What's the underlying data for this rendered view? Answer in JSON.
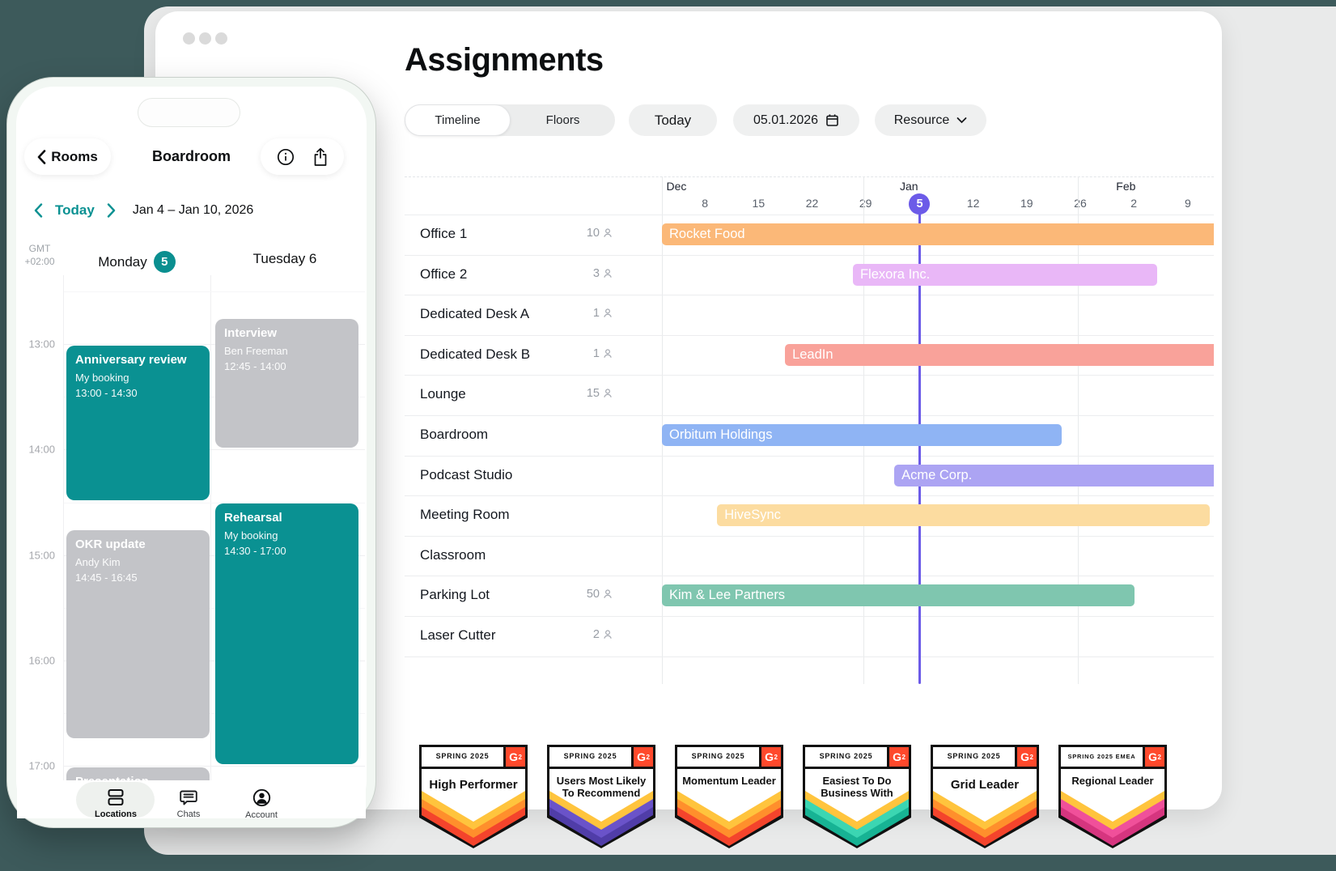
{
  "colors": {
    "backdrop": "#3D5A5B",
    "panel": "#E9EAEA",
    "today_purple": "#6C5BE8",
    "phone_teal": "#0A9192",
    "event_gray": "#C3C4C8",
    "g2_red": "#FF492C"
  },
  "desktop": {
    "title": "Assignments",
    "controls": {
      "timeline_tab": "Timeline",
      "floors_tab": "Floors",
      "today_button": "Today",
      "date_value": "05.01.2026",
      "resource_button": "Resource"
    },
    "timeline": {
      "months": [
        {
          "label": "Dec",
          "pct": 0.8
        },
        {
          "label": "Jan",
          "pct": 43.1
        },
        {
          "label": "Feb",
          "pct": 82.3
        }
      ],
      "ticks": [
        {
          "label": "8",
          "pct": 7.8
        },
        {
          "label": "15",
          "pct": 17.5
        },
        {
          "label": "22",
          "pct": 27.2
        },
        {
          "label": "29",
          "pct": 36.9
        },
        {
          "label": "5",
          "pct": 46.7,
          "today": true
        },
        {
          "label": "12",
          "pct": 56.4
        },
        {
          "label": "19",
          "pct": 66.1
        },
        {
          "label": "26",
          "pct": 75.8
        },
        {
          "label": "2",
          "pct": 85.5
        },
        {
          "label": "9",
          "pct": 95.3
        }
      ],
      "month_gridlines_pct": [
        36.5,
        75.4
      ],
      "today_marker": {
        "label": "5",
        "pct": 46.7
      },
      "rows": [
        {
          "name": "Office 1",
          "capacity": "10",
          "booking": {
            "label": "Rocket Food",
            "start_pct": 0,
            "end_pct": 100,
            "color": "#FBB878",
            "clip_right": true
          }
        },
        {
          "name": "Office 2",
          "capacity": "3",
          "booking": {
            "label": "Flexora Inc.",
            "start_pct": 34.6,
            "end_pct": 89.7,
            "color": "#E9B7F7",
            "clip_right": false
          }
        },
        {
          "name": "Dedicated Desk A",
          "capacity": "1",
          "booking": null
        },
        {
          "name": "Dedicated Desk B",
          "capacity": "1",
          "booking": {
            "label": "LeadIn",
            "start_pct": 22.3,
            "end_pct": 100,
            "color": "#F9A29A",
            "clip_right": true
          }
        },
        {
          "name": "Lounge",
          "capacity": "15",
          "booking": null
        },
        {
          "name": "Boardroom",
          "capacity": null,
          "booking": {
            "label": "Orbitum Holdings",
            "start_pct": 0,
            "end_pct": 72.4,
            "color": "#8FB4F4",
            "clip_right": false
          }
        },
        {
          "name": "Podcast Studio",
          "capacity": null,
          "booking": {
            "label": "Acme Corp.",
            "start_pct": 42.1,
            "end_pct": 100,
            "color": "#ACA4F3",
            "clip_right": true
          }
        },
        {
          "name": "Meeting Room",
          "capacity": null,
          "booking": {
            "label": "HiveSync",
            "start_pct": 10.0,
            "end_pct": 99.3,
            "color": "#FCDCA0",
            "clip_right": false
          }
        },
        {
          "name": "Classroom",
          "capacity": null,
          "booking": null
        },
        {
          "name": "Parking Lot",
          "capacity": "50",
          "booking": {
            "label": "Kim & Lee Partners",
            "start_pct": 0,
            "end_pct": 85.6,
            "color": "#7FC6AF",
            "clip_right": false
          }
        },
        {
          "name": "Laser Cutter",
          "capacity": "2",
          "booking": null
        }
      ]
    }
  },
  "phone": {
    "header": {
      "back_label": "Rooms",
      "title": "Boardroom"
    },
    "week_nav": {
      "today_label": "Today",
      "range": "Jan 4 – Jan 10, 2026"
    },
    "gmt_line1": "GMT",
    "gmt_line2": "+02:00",
    "days": [
      {
        "label": "Monday",
        "badge": "5"
      },
      {
        "label": "Tuesday 6",
        "badge": null
      }
    ],
    "hours": [
      "13:00",
      "14:00",
      "15:00",
      "16:00",
      "17:00"
    ],
    "events": [
      {
        "col": 1,
        "title": "Interview",
        "subtitle": "Ben Freeman",
        "time": "12:45 - 14:00",
        "start": "12:45",
        "end": "14:00",
        "kind": "other"
      },
      {
        "col": 0,
        "title": "Anniversary review",
        "subtitle": "My booking",
        "time": "13:00 - 14:30",
        "start": "13:00",
        "end": "14:30",
        "kind": "mine"
      },
      {
        "col": 1,
        "title": "Rehearsal",
        "subtitle": "My booking",
        "time": "14:30 - 17:00",
        "start": "14:30",
        "end": "17:00",
        "kind": "mine"
      },
      {
        "col": 0,
        "title": "OKR update",
        "subtitle": "Andy Kim",
        "time": "14:45 - 16:45",
        "start": "14:45",
        "end": "16:45",
        "kind": "other"
      },
      {
        "col": 0,
        "title": "Presentation",
        "subtitle": "",
        "time": "",
        "start": "17:00",
        "end": "18:00",
        "kind": "other"
      }
    ],
    "tabbar": [
      {
        "label": "Locations",
        "icon": "locations-icon",
        "active": true
      },
      {
        "label": "Chats",
        "icon": "chats-icon",
        "active": false
      },
      {
        "label": "Account",
        "icon": "account-icon",
        "active": false
      }
    ]
  },
  "badges": [
    {
      "season": "SPRING 2025",
      "title": "High Performer",
      "ribbon": [
        "#FFC43D",
        "#FF8F2C",
        "#F4442C"
      ]
    },
    {
      "season": "SPRING 2025",
      "title": "Users Most Likely To Recommend",
      "ribbon": [
        "#FFC43D",
        "#6A53C9",
        "#503DA8"
      ]
    },
    {
      "season": "SPRING 2025",
      "title": "Momentum Leader",
      "ribbon": [
        "#FFC43D",
        "#FF8F2C",
        "#F4442C"
      ]
    },
    {
      "season": "SPRING 2025",
      "title": "Easiest To Do Business With",
      "ribbon": [
        "#FFC43D",
        "#3BD6B2",
        "#17B394"
      ]
    },
    {
      "season": "SPRING 2025",
      "title": "Grid Leader",
      "ribbon": [
        "#FFC43D",
        "#FF8F2C",
        "#F4442C"
      ]
    },
    {
      "season": "SPRING 2025 EMEA",
      "title": "Regional Leader",
      "ribbon": [
        "#FFC43D",
        "#F0509A",
        "#D6357F"
      ]
    }
  ]
}
